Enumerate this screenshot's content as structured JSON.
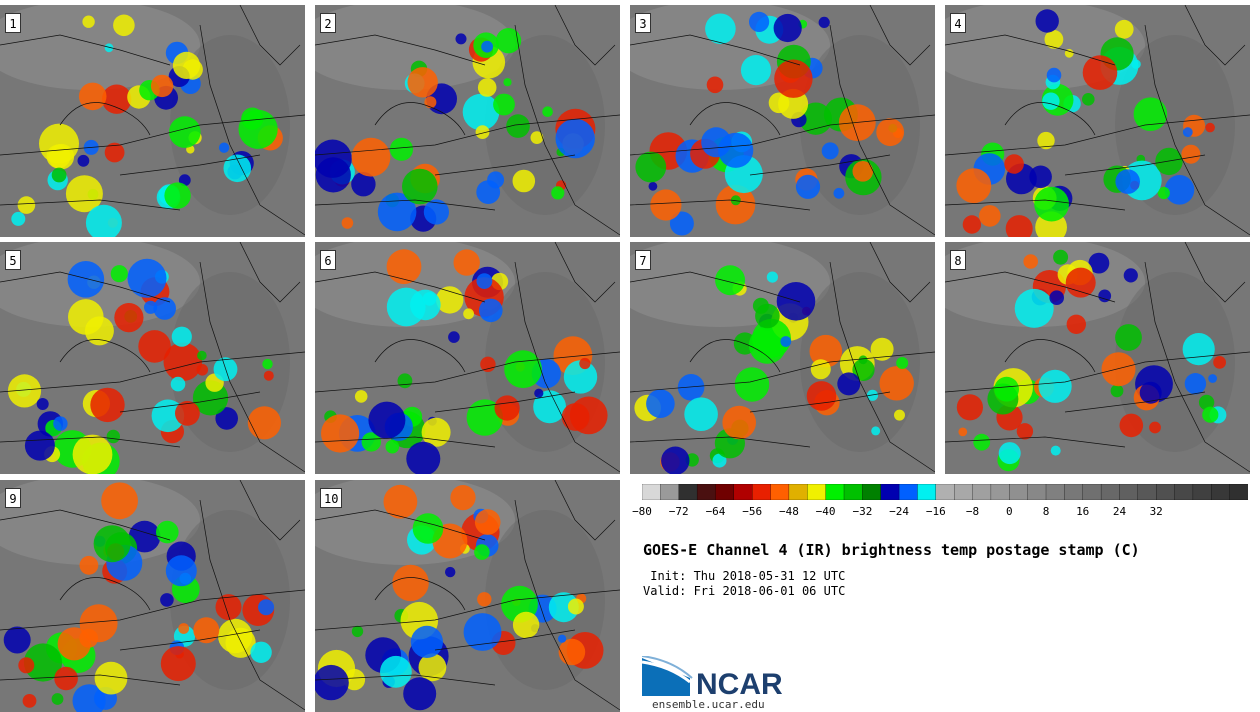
{
  "panels": [
    {
      "label": "1"
    },
    {
      "label": "2"
    },
    {
      "label": "3"
    },
    {
      "label": "4"
    },
    {
      "label": "5"
    },
    {
      "label": "6"
    },
    {
      "label": "7"
    },
    {
      "label": "8"
    },
    {
      "label": "9"
    },
    {
      "label": "10"
    }
  ],
  "colorbar": {
    "ticks": [
      "−80",
      "−72",
      "−64",
      "−56",
      "−48",
      "−40",
      "−32",
      "−24",
      "−16",
      "−8",
      "0",
      "8",
      "16",
      "24",
      "32"
    ],
    "colors": [
      "#d8d8d8",
      "#9a9a9a",
      "#303030",
      "#4a1010",
      "#700000",
      "#b00000",
      "#e82000",
      "#ff6000",
      "#e0b000",
      "#f0f000",
      "#00f000",
      "#00c000",
      "#008000",
      "#0000b0",
      "#0060ff",
      "#00f0f0",
      "#b0b0b0",
      "#a8a8a8",
      "#a0a0a0",
      "#989898",
      "#909090",
      "#888888",
      "#808080",
      "#787878",
      "#707070",
      "#686868",
      "#606060",
      "#585858",
      "#505050",
      "#484848",
      "#404040",
      "#383838",
      "#303030"
    ]
  },
  "title": "GOES-E Channel 4 (IR) brightness temp postage stamp (C)",
  "init": " Init: Thu 2018-05-31 12 UTC",
  "valid": "Valid: Fri 2018-06-01 06 UTC",
  "logo": {
    "text": "NCAR",
    "url": "ensemble.ucar.edu"
  }
}
